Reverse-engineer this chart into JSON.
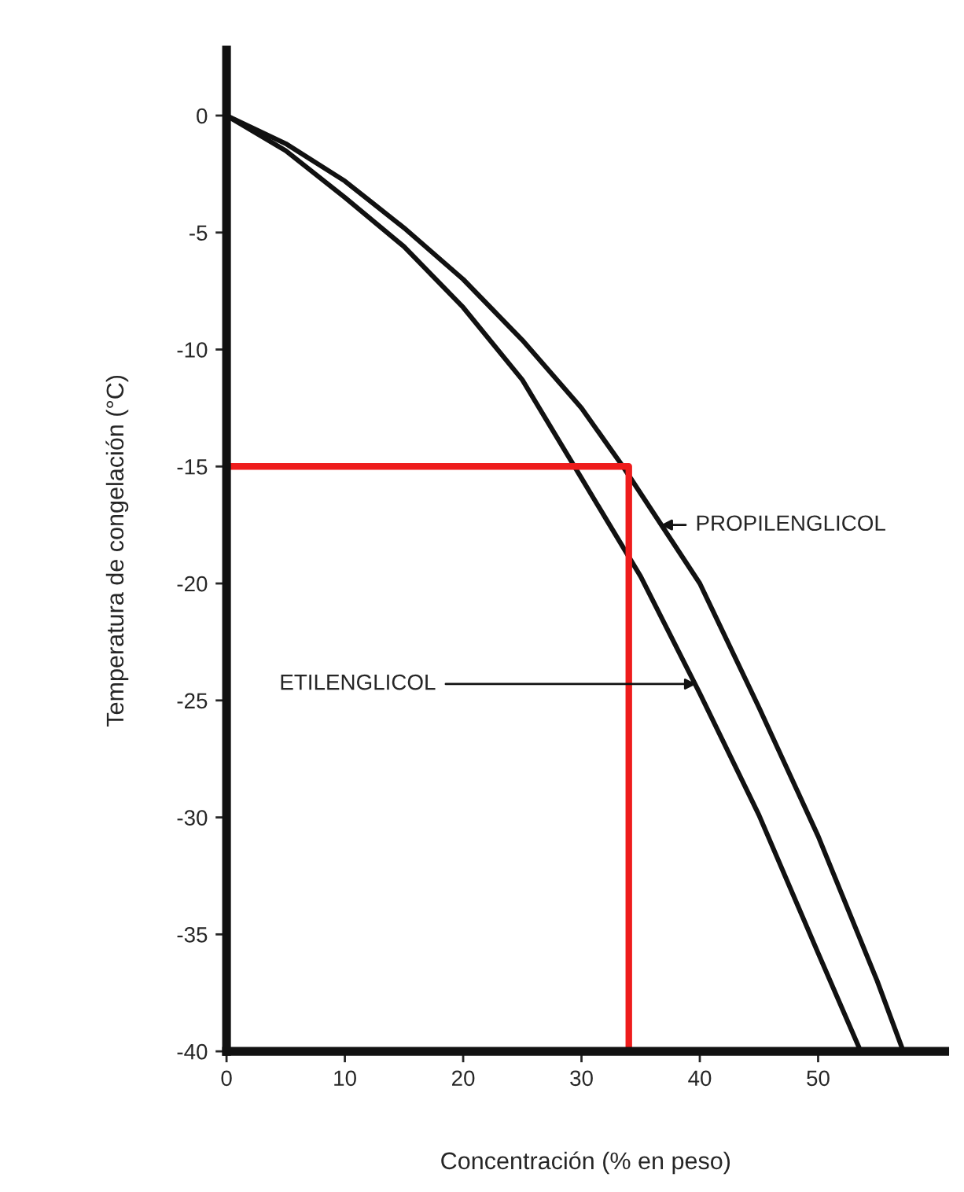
{
  "chart_data": {
    "type": "line",
    "xlabel": "Concentración (% en peso)",
    "ylabel": "Temperatura de congelación (°C)",
    "xlim": [
      0,
      60.7
    ],
    "ylim": [
      -40,
      2.8
    ],
    "xticks": [
      0,
      10,
      20,
      30,
      40,
      50
    ],
    "yticks": [
      0,
      -5,
      -10,
      -15,
      -20,
      -25,
      -30,
      -35,
      -40
    ],
    "grid": false,
    "marker": "none",
    "line_style": "solid",
    "series": [
      {
        "color": "#111111",
        "x": [
          0,
          5,
          10,
          15,
          20,
          25,
          30,
          35,
          40,
          45,
          50,
          53.6
        ],
        "values": [
          0,
          -1.5,
          -3.5,
          -5.6,
          -8.2,
          -11.3,
          -15.5,
          -19.7,
          -24.7,
          -29.9,
          -35.8,
          -40
        ]
      },
      {
        "color": "#111111",
        "x": [
          0,
          5,
          10,
          15,
          20,
          25,
          30,
          33.5,
          40,
          45,
          50,
          55,
          57.2
        ],
        "values": [
          0,
          -1.2,
          -2.8,
          -4.8,
          -7,
          -9.6,
          -12.5,
          -15,
          -20,
          -25.3,
          -30.8,
          -37,
          -40
        ]
      },
      {
        "color": "#ee1c1c",
        "x": [
          0,
          34,
          34
        ],
        "values": [
          -15,
          -15,
          -40
        ]
      }
    ],
    "annotations": [
      {
        "text": "PROPILENGLICOL",
        "x": 36.7,
        "y": -17.5
      },
      {
        "text": "ETILENGLICOL",
        "x": 39.7,
        "y": -24.3
      }
    ]
  }
}
